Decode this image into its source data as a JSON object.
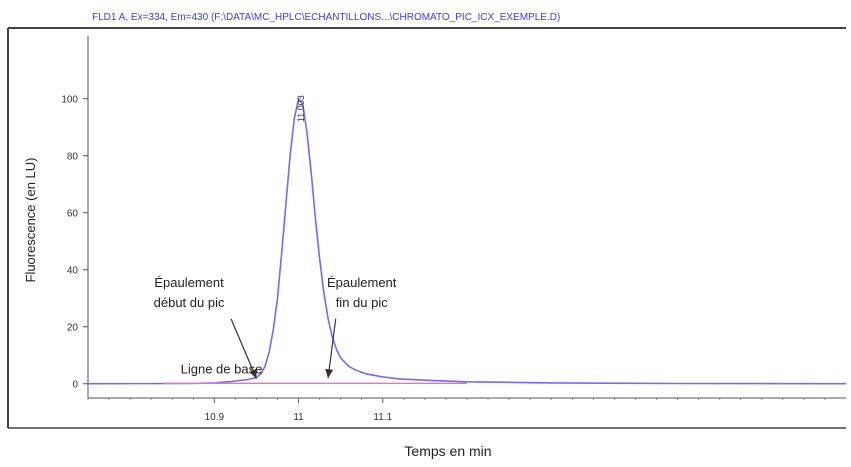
{
  "chart_data": {
    "type": "line",
    "title": "FLD1 A, Ex=334, Em=430 (F:\\DATA\\MC_HPLC\\ECHANTILLONS...\\CHROMATO_PIC_ICX_EXEMPLE.D)",
    "xlabel": "Temps en min",
    "ylabel": "Fluorescence (en LU)",
    "xlim": [
      10.75,
      11.65
    ],
    "ylim": [
      -5,
      122
    ],
    "x_ticks": [
      10.9,
      11,
      11.1
    ],
    "x_tick_labels": [
      "10.9",
      "11",
      "11.1"
    ],
    "y_ticks": [
      0,
      20,
      40,
      60,
      80,
      100
    ],
    "y_tick_labels": [
      "0",
      "20",
      "40",
      "60",
      "80",
      "100"
    ],
    "grid": false,
    "series": [
      {
        "color": "#6f6cff",
        "x": [
          10.75,
          10.87,
          10.9,
          10.92,
          10.94,
          10.95,
          10.955,
          10.96,
          10.965,
          10.97,
          10.975,
          10.98,
          10.985,
          10.99,
          10.995,
          11.0,
          11.005,
          11.01,
          11.015,
          11.02,
          11.025,
          11.03,
          11.035,
          11.04,
          11.045,
          11.05,
          11.06,
          11.07,
          11.08,
          11.1,
          11.12,
          11.16,
          11.2,
          11.3,
          11.45,
          11.65
        ],
        "y": [
          0,
          0.1,
          0.3,
          0.8,
          1.5,
          2.2,
          3.5,
          6,
          11,
          19,
          30,
          46,
          63,
          80,
          93,
          100,
          98,
          88,
          74,
          58,
          44,
          32,
          23,
          16.5,
          12,
          9,
          6,
          4.5,
          3.5,
          2.4,
          1.7,
          1.1,
          0.7,
          0.3,
          0.1,
          0
        ]
      },
      {
        "color": "#ff66cc",
        "x": [
          10.84,
          11.2
        ],
        "y": [
          0.15,
          0.15
        ]
      }
    ],
    "peak_label": {
      "x": 11.003,
      "y": 100,
      "text": "11.003"
    },
    "annotations": [
      {
        "text": "Ligne de base",
        "x": 10.86,
        "y": 3.6
      },
      {
        "text": "Épaulement\ndébut du pic",
        "x": 10.87,
        "y": 34,
        "arrow_to": [
          10.95,
          1.8
        ]
      },
      {
        "text": "Épaulement\nfin du pic",
        "x": 11.075,
        "y": 34,
        "arrow_to": [
          11.035,
          1.9
        ]
      }
    ]
  }
}
